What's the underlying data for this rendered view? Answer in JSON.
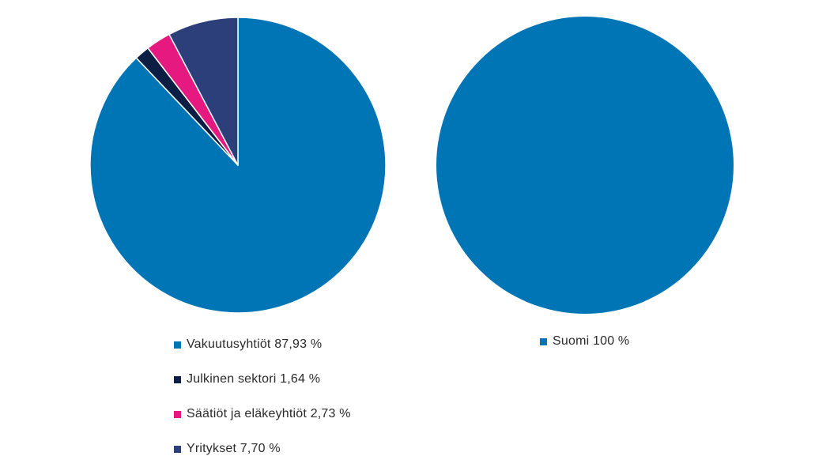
{
  "chart_data": [
    {
      "type": "pie",
      "slices": [
        {
          "label": "Vakuutusyhtiöt 87,93 %",
          "value": 87.93,
          "color": "#0075b5"
        },
        {
          "label": "Julkinen sektori 1,64 %",
          "value": 1.64,
          "color": "#0d1e44"
        },
        {
          "label": "Säätiöt ja eläkeyhtiöt 2,73 %",
          "value": 2.73,
          "color": "#e5197f"
        },
        {
          "label": "Yritykset 7,70 %",
          "value": 7.7,
          "color": "#2c3f7a"
        }
      ]
    },
    {
      "type": "pie",
      "slices": [
        {
          "label": "Suomi 100 %",
          "value": 100,
          "color": "#0075b5"
        }
      ]
    }
  ]
}
